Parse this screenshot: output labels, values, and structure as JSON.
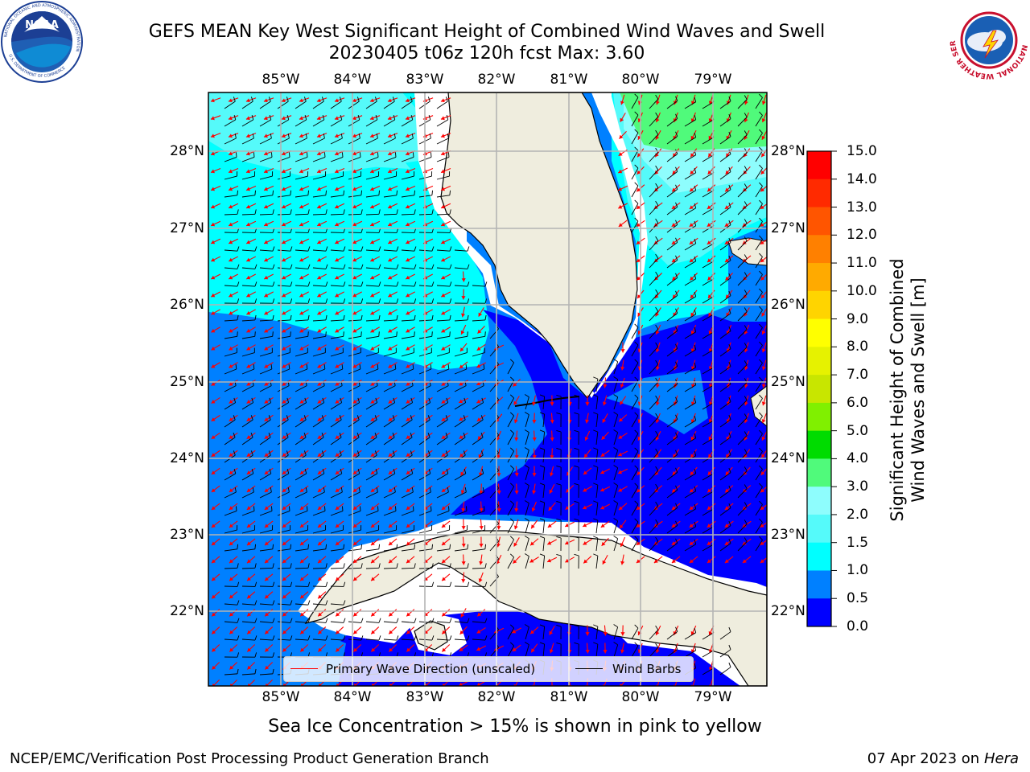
{
  "title": {
    "line1": "GEFS MEAN Key West Significant Height of Combined Wind Waves and Swell",
    "line2": "20230405 t06z 120h fcst   Max: 3.60"
  },
  "map": {
    "lon_labels": [
      "85°W",
      "84°W",
      "83°W",
      "82°W",
      "81°W",
      "80°W",
      "79°W"
    ],
    "lat_labels": [
      "28°N",
      "27°N",
      "26°N",
      "25°N",
      "24°N",
      "23°N",
      "22°N"
    ],
    "land_color": "#efedde",
    "gridline_color": "#b4b4b4",
    "legend": {
      "wave_label": "Primary Wave Direction (unscaled)",
      "wave_color": "#ff0000",
      "barb_label": "Wind Barbs",
      "barb_color": "#000000"
    }
  },
  "colorbar": {
    "ticks": [
      "15.0",
      "14.0",
      "13.0",
      "12.0",
      "11.0",
      "10.0",
      "9.0",
      "8.0",
      "7.0",
      "6.0",
      "5.0",
      "4.0",
      "3.0",
      "2.0",
      "1.5",
      "1.0",
      "0.5",
      "0.0"
    ],
    "colors_top_to_bottom": [
      "#ff0000",
      "#ff2a00",
      "#ff5500",
      "#ff8000",
      "#ffaa00",
      "#ffd400",
      "#ffff00",
      "#e6f200",
      "#c8e600",
      "#80f000",
      "#00dc00",
      "#50fa7b",
      "#8efdfd",
      "#55fafa",
      "#00ffff",
      "#0080ff",
      "#0000ff"
    ],
    "label_line1": "Significant Height of Combined",
    "label_line2": "Wind Waves and Swell [m]"
  },
  "note": "Sea Ice Concentration > 15% is shown in pink to yellow",
  "footer": {
    "left": "NCEP/EMC/Verification Post Processing Product Generation Branch",
    "right_date": "07 Apr 2023 on ",
    "right_host": "Hera"
  },
  "logos": {
    "left_name": "NOAA",
    "left_ring_text": "NATIONAL OCEANIC AND ATMOSPHERIC ADMINISTRATION",
    "left_bottom_text": "U.S. DEPARTMENT OF COMMERCE",
    "right_ring_text": "NATIONAL WEATHER SERVICE"
  }
}
